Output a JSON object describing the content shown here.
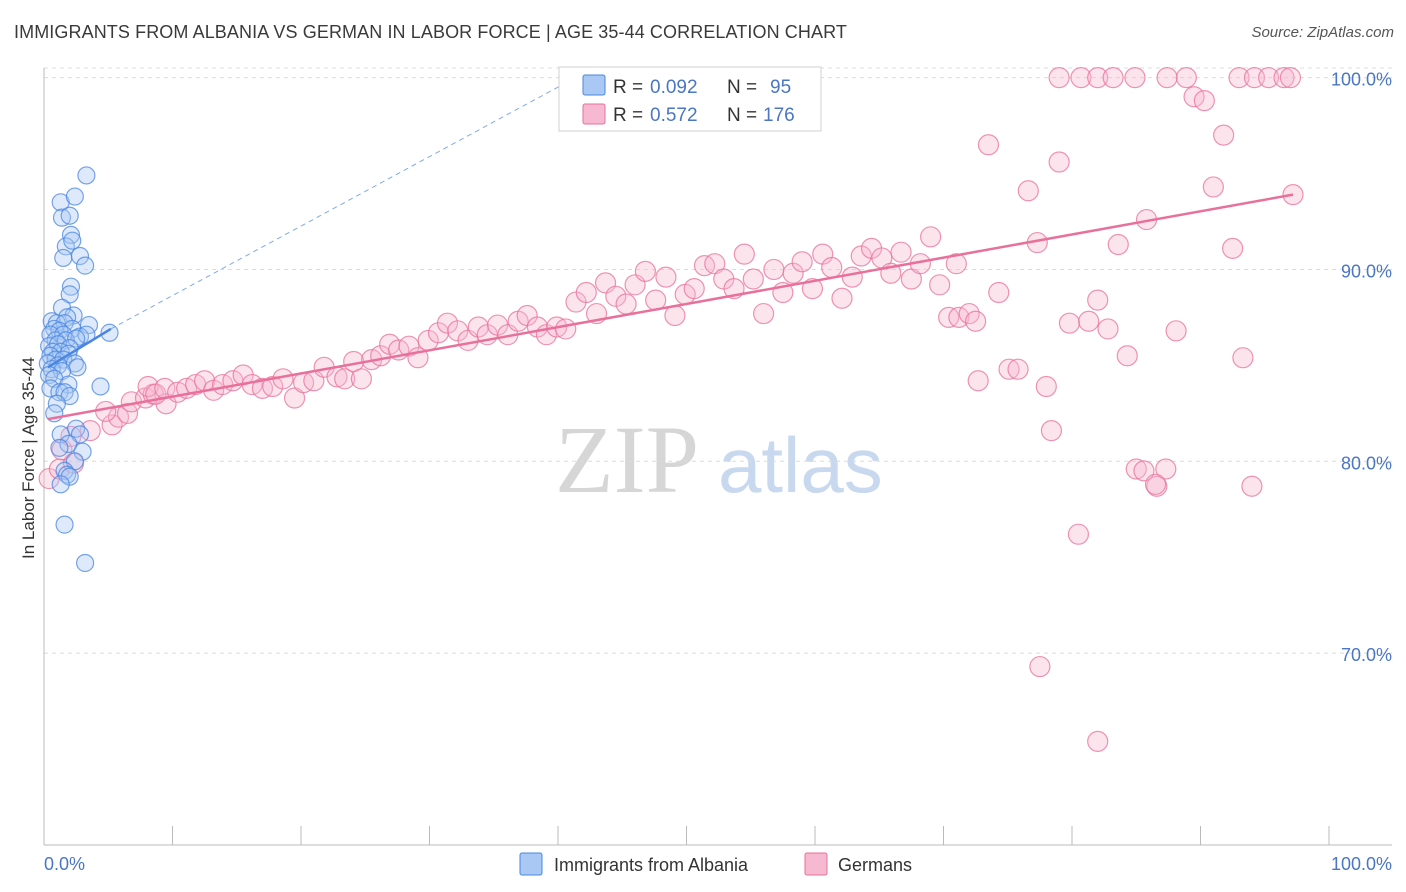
{
  "title": "IMMIGRANTS FROM ALBANIA VS GERMAN IN LABOR FORCE | AGE 35-44 CORRELATION CHART",
  "source": "Source: ZipAtlas.com",
  "watermark": {
    "zip": "ZIP",
    "atlas": "atlas"
  },
  "colors": {
    "blue": "#4a86e0",
    "blue_fill": "#a9c8f4",
    "pink": "#e8709a",
    "pink_fill": "#f6b9cf",
    "tick_label": "#4a76c4",
    "grid": "#dcdcdc"
  },
  "legend": {
    "rows": [
      {
        "r_label": "R = ",
        "r_value": "0.092",
        "n_label": "N = ",
        "n_value": "95",
        "series": "Immigrants from Albania"
      },
      {
        "r_label": "R = ",
        "r_value": "0.572",
        "n_label": "N = ",
        "n_value": "176",
        "series": "Germans"
      }
    ]
  },
  "chart_data": {
    "type": "scatter",
    "title": "IMMIGRANTS FROM ALBANIA VS GERMAN IN LABOR FORCE | AGE 35-44 CORRELATION CHART",
    "xlabel": "",
    "ylabel": "In Labor Force | Age 35-44",
    "x_tick_labels": [
      "0.0%",
      "100.0%"
    ],
    "y_tick_labels": [
      "70.0%",
      "80.0%",
      "90.0%",
      "100.0%"
    ],
    "y_ticks": [
      70,
      80,
      90,
      100
    ],
    "xlim": [
      0,
      100
    ],
    "ylim": [
      60,
      100.5
    ],
    "grid": true,
    "legend_position": "top-center",
    "series": [
      {
        "name": "Immigrants from Albania",
        "color": "#4a86e0",
        "trend": {
          "x": [
            0.3,
            5.2
          ],
          "y": [
            84.9,
            86.9
          ]
        },
        "trend_extended": {
          "x": [
            5.2,
            42.2
          ],
          "y": [
            86.9,
            100.3
          ]
        },
        "points": [
          [
            3.3,
            94.9
          ],
          [
            1.3,
            93.5
          ],
          [
            2.4,
            93.8
          ],
          [
            1.4,
            92.7
          ],
          [
            2.0,
            92.8
          ],
          [
            2.1,
            91.8
          ],
          [
            1.7,
            91.2
          ],
          [
            2.2,
            91.5
          ],
          [
            1.5,
            90.6
          ],
          [
            2.8,
            90.7
          ],
          [
            3.2,
            90.2
          ],
          [
            2.1,
            89.1
          ],
          [
            2.0,
            88.7
          ],
          [
            1.4,
            88.0
          ],
          [
            2.3,
            87.6
          ],
          [
            1.8,
            87.5
          ],
          [
            0.6,
            87.3
          ],
          [
            1.0,
            87.2
          ],
          [
            1.6,
            87.2
          ],
          [
            3.5,
            87.1
          ],
          [
            0.8,
            86.9
          ],
          [
            2.2,
            86.9
          ],
          [
            1.2,
            86.8
          ],
          [
            5.1,
            86.7
          ],
          [
            0.5,
            86.6
          ],
          [
            1.5,
            86.6
          ],
          [
            2.8,
            86.5
          ],
          [
            3.3,
            86.6
          ],
          [
            0.9,
            86.3
          ],
          [
            1.7,
            86.3
          ],
          [
            2.5,
            86.4
          ],
          [
            0.4,
            86.0
          ],
          [
            1.1,
            86.1
          ],
          [
            2.0,
            85.9
          ],
          [
            0.7,
            85.7
          ],
          [
            1.3,
            85.7
          ],
          [
            1.9,
            85.6
          ],
          [
            0.5,
            85.5
          ],
          [
            0.9,
            85.3
          ],
          [
            1.5,
            85.3
          ],
          [
            0.3,
            85.1
          ],
          [
            2.4,
            85.1
          ],
          [
            1.1,
            85.0
          ],
          [
            2.6,
            84.9
          ],
          [
            0.6,
            84.8
          ],
          [
            1.4,
            84.7
          ],
          [
            0.4,
            84.5
          ],
          [
            0.8,
            84.3
          ],
          [
            1.9,
            84.0
          ],
          [
            4.4,
            83.9
          ],
          [
            0.5,
            83.8
          ],
          [
            1.2,
            83.6
          ],
          [
            1.6,
            83.6
          ],
          [
            2.0,
            83.4
          ],
          [
            1.0,
            83.0
          ],
          [
            0.8,
            82.5
          ],
          [
            2.5,
            81.7
          ],
          [
            1.3,
            81.4
          ],
          [
            2.8,
            81.4
          ],
          [
            1.9,
            80.9
          ],
          [
            1.2,
            80.7
          ],
          [
            3.0,
            80.5
          ],
          [
            2.4,
            80.0
          ],
          [
            1.6,
            79.5
          ],
          [
            1.8,
            79.3
          ],
          [
            2.0,
            79.2
          ],
          [
            1.3,
            78.8
          ],
          [
            1.6,
            76.7
          ],
          [
            3.2,
            74.7
          ]
        ]
      },
      {
        "name": "Germans",
        "color": "#e8709a",
        "trend": {
          "x": [
            0.3,
            97.2
          ],
          "y": [
            82.2,
            93.9
          ]
        },
        "points": [
          [
            0.4,
            79.1
          ],
          [
            1.2,
            79.6
          ],
          [
            2.3,
            79.9
          ],
          [
            1.4,
            80.6
          ],
          [
            2.1,
            81.3
          ],
          [
            3.6,
            81.6
          ],
          [
            5.3,
            81.9
          ],
          [
            5.8,
            82.3
          ],
          [
            4.8,
            82.6
          ],
          [
            6.5,
            82.5
          ],
          [
            6.8,
            83.1
          ],
          [
            7.9,
            83.3
          ],
          [
            8.5,
            83.5
          ],
          [
            9.5,
            83.0
          ],
          [
            8.1,
            83.9
          ],
          [
            8.7,
            83.5
          ],
          [
            9.4,
            83.8
          ],
          [
            10.4,
            83.6
          ],
          [
            11.1,
            83.8
          ],
          [
            11.8,
            84.0
          ],
          [
            12.5,
            84.2
          ],
          [
            13.2,
            83.7
          ],
          [
            13.9,
            84.0
          ],
          [
            14.7,
            84.2
          ],
          [
            15.5,
            84.5
          ],
          [
            16.2,
            84.0
          ],
          [
            17.0,
            83.8
          ],
          [
            17.8,
            83.9
          ],
          [
            18.6,
            84.3
          ],
          [
            19.5,
            83.3
          ],
          [
            20.2,
            84.1
          ],
          [
            21.0,
            84.2
          ],
          [
            21.8,
            84.9
          ],
          [
            22.8,
            84.4
          ],
          [
            23.4,
            84.3
          ],
          [
            24.1,
            85.2
          ],
          [
            24.7,
            84.3
          ],
          [
            25.5,
            85.3
          ],
          [
            26.2,
            85.5
          ],
          [
            26.9,
            86.1
          ],
          [
            27.6,
            85.8
          ],
          [
            28.4,
            86.0
          ],
          [
            29.1,
            85.4
          ],
          [
            29.9,
            86.3
          ],
          [
            30.7,
            86.7
          ],
          [
            31.4,
            87.2
          ],
          [
            32.2,
            86.8
          ],
          [
            33.0,
            86.3
          ],
          [
            33.8,
            87.0
          ],
          [
            34.5,
            86.6
          ],
          [
            35.3,
            87.1
          ],
          [
            36.1,
            86.6
          ],
          [
            36.9,
            87.3
          ],
          [
            37.6,
            87.6
          ],
          [
            38.4,
            87.0
          ],
          [
            39.1,
            86.6
          ],
          [
            39.9,
            87.0
          ],
          [
            40.6,
            86.9
          ],
          [
            41.4,
            88.3
          ],
          [
            42.2,
            88.8
          ],
          [
            43.0,
            87.7
          ],
          [
            43.7,
            89.3
          ],
          [
            44.5,
            88.6
          ],
          [
            45.3,
            88.2
          ],
          [
            46.0,
            89.2
          ],
          [
            46.8,
            89.9
          ],
          [
            47.6,
            88.4
          ],
          [
            48.4,
            89.6
          ],
          [
            49.1,
            87.6
          ],
          [
            49.9,
            88.7
          ],
          [
            50.6,
            89.0
          ],
          [
            51.4,
            90.2
          ],
          [
            52.2,
            90.3
          ],
          [
            52.9,
            89.5
          ],
          [
            53.7,
            89.0
          ],
          [
            54.5,
            90.8
          ],
          [
            55.2,
            89.5
          ],
          [
            56.0,
            87.7
          ],
          [
            56.8,
            90.0
          ],
          [
            57.5,
            88.8
          ],
          [
            58.3,
            89.8
          ],
          [
            59.0,
            90.4
          ],
          [
            59.8,
            89.0
          ],
          [
            60.6,
            90.8
          ],
          [
            61.3,
            90.1
          ],
          [
            62.1,
            88.5
          ],
          [
            62.9,
            89.6
          ],
          [
            63.6,
            90.7
          ],
          [
            64.4,
            91.1
          ],
          [
            65.2,
            90.6
          ],
          [
            65.9,
            89.8
          ],
          [
            66.7,
            90.9
          ],
          [
            67.5,
            89.5
          ],
          [
            68.2,
            90.3
          ],
          [
            69.0,
            91.7
          ],
          [
            69.7,
            89.2
          ],
          [
            70.4,
            87.5
          ],
          [
            71.2,
            87.5
          ],
          [
            72.0,
            87.7
          ],
          [
            72.7,
            84.2
          ],
          [
            73.5,
            96.5
          ],
          [
            74.3,
            88.8
          ],
          [
            75.1,
            84.8
          ],
          [
            75.8,
            84.8
          ],
          [
            76.6,
            94.1
          ],
          [
            77.3,
            91.4
          ],
          [
            78.0,
            83.9
          ],
          [
            78.4,
            81.6
          ],
          [
            79.0,
            95.6
          ],
          [
            79.8,
            87.2
          ],
          [
            80.5,
            76.2
          ],
          [
            81.3,
            87.3
          ],
          [
            82.0,
            88.4
          ],
          [
            82.8,
            86.9
          ],
          [
            83.6,
            91.3
          ],
          [
            84.3,
            85.5
          ],
          [
            85.0,
            79.6
          ],
          [
            85.8,
            92.6
          ],
          [
            86.6,
            78.7
          ],
          [
            87.3,
            79.6
          ],
          [
            88.1,
            86.8
          ],
          [
            88.9,
            100.0
          ],
          [
            89.5,
            99.0
          ],
          [
            90.3,
            98.8
          ],
          [
            91.0,
            94.3
          ],
          [
            91.8,
            97.0
          ],
          [
            92.5,
            91.1
          ],
          [
            93.3,
            85.4
          ],
          [
            94.0,
            78.7
          ],
          [
            97.2,
            93.9
          ],
          [
            79.0,
            100.0
          ],
          [
            80.7,
            100.0
          ],
          [
            82.0,
            100.0
          ],
          [
            83.2,
            100.0
          ],
          [
            84.9,
            100.0
          ],
          [
            87.4,
            100.0
          ],
          [
            93.0,
            100.0
          ],
          [
            94.2,
            100.0
          ],
          [
            95.3,
            100.0
          ],
          [
            96.5,
            100.0
          ],
          [
            97.0,
            100.0
          ],
          [
            77.5,
            69.3
          ],
          [
            82.0,
            65.4
          ],
          [
            85.6,
            79.5
          ],
          [
            86.5,
            78.8
          ],
          [
            72.5,
            87.3
          ],
          [
            71.0,
            90.3
          ]
        ]
      }
    ]
  }
}
